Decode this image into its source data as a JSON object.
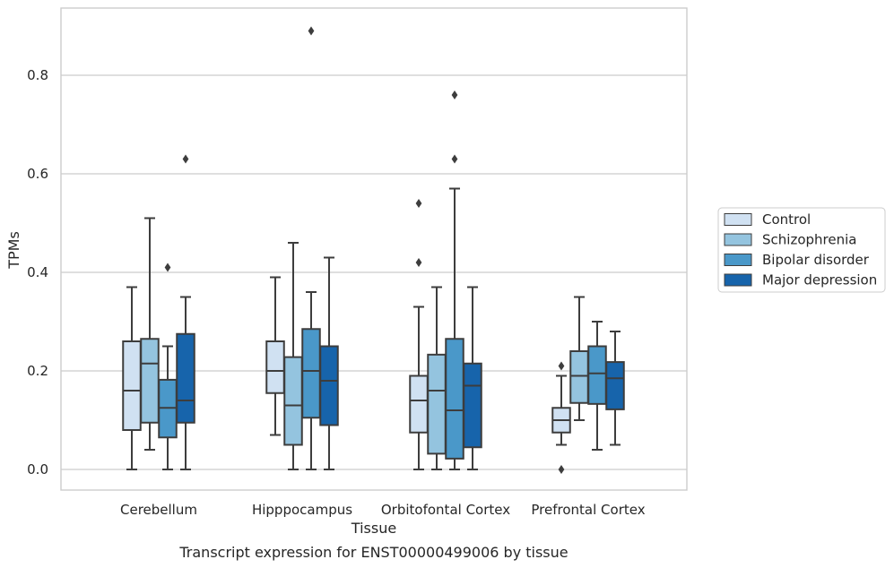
{
  "caption": "Transcript expression for ENST00000499006 by tissue",
  "chart_data": {
    "type": "box",
    "title": "",
    "xlabel": "Tissue",
    "ylabel": "TPMs",
    "ylim": [
      -0.04,
      0.94
    ],
    "yticks": [
      0.0,
      0.2,
      0.4,
      0.6,
      0.8
    ],
    "ytick_labels": [
      "0.0",
      "0.2",
      "0.4",
      "0.6",
      "0.8"
    ],
    "grid": "horizontal",
    "legend_position": "right",
    "categories": [
      "Cerebellum",
      "Hipppocampus",
      "Orbitofontal Cortex",
      "Prefrontal Cortex"
    ],
    "series": [
      {
        "name": "Control",
        "color": "#d0e1f2",
        "boxes": [
          {
            "whisker_low": 0.0,
            "q1": 0.08,
            "median": 0.16,
            "q3": 0.26,
            "whisker_high": 0.37,
            "outliers": []
          },
          {
            "whisker_low": 0.07,
            "q1": 0.155,
            "median": 0.2,
            "q3": 0.26,
            "whisker_high": 0.39,
            "outliers": []
          },
          {
            "whisker_low": 0.0,
            "q1": 0.075,
            "median": 0.14,
            "q3": 0.19,
            "whisker_high": 0.33,
            "outliers": [
              0.42,
              0.54
            ]
          },
          {
            "whisker_low": 0.05,
            "q1": 0.075,
            "median": 0.1,
            "q3": 0.125,
            "whisker_high": 0.19,
            "outliers": [
              0.0,
              0.21
            ]
          }
        ]
      },
      {
        "name": "Schizophrenia",
        "color": "#94c4df",
        "boxes": [
          {
            "whisker_low": 0.04,
            "q1": 0.095,
            "median": 0.215,
            "q3": 0.265,
            "whisker_high": 0.51,
            "outliers": []
          },
          {
            "whisker_low": 0.0,
            "q1": 0.05,
            "median": 0.13,
            "q3": 0.228,
            "whisker_high": 0.46,
            "outliers": []
          },
          {
            "whisker_low": 0.0,
            "q1": 0.032,
            "median": 0.16,
            "q3": 0.233,
            "whisker_high": 0.37,
            "outliers": []
          },
          {
            "whisker_low": 0.1,
            "q1": 0.135,
            "median": 0.19,
            "q3": 0.24,
            "whisker_high": 0.35,
            "outliers": []
          }
        ]
      },
      {
        "name": "Bipolar disorder",
        "color": "#4a98c9",
        "boxes": [
          {
            "whisker_low": 0.0,
            "q1": 0.065,
            "median": 0.125,
            "q3": 0.182,
            "whisker_high": 0.25,
            "outliers": [
              0.41
            ]
          },
          {
            "whisker_low": 0.0,
            "q1": 0.105,
            "median": 0.2,
            "q3": 0.285,
            "whisker_high": 0.36,
            "outliers": [
              0.89
            ]
          },
          {
            "whisker_low": 0.0,
            "q1": 0.022,
            "median": 0.12,
            "q3": 0.265,
            "whisker_high": 0.57,
            "outliers": [
              0.63,
              0.76
            ]
          },
          {
            "whisker_low": 0.04,
            "q1": 0.133,
            "median": 0.195,
            "q3": 0.25,
            "whisker_high": 0.3,
            "outliers": []
          }
        ]
      },
      {
        "name": "Major depression",
        "color": "#1764ab",
        "boxes": [
          {
            "whisker_low": 0.0,
            "q1": 0.095,
            "median": 0.14,
            "q3": 0.275,
            "whisker_high": 0.35,
            "outliers": [
              0.63
            ]
          },
          {
            "whisker_low": 0.0,
            "q1": 0.09,
            "median": 0.18,
            "q3": 0.25,
            "whisker_high": 0.43,
            "outliers": []
          },
          {
            "whisker_low": 0.0,
            "q1": 0.045,
            "median": 0.17,
            "q3": 0.215,
            "whisker_high": 0.37,
            "outliers": []
          },
          {
            "whisker_low": 0.05,
            "q1": 0.122,
            "median": 0.185,
            "q3": 0.218,
            "whisker_high": 0.28,
            "outliers": []
          }
        ]
      }
    ],
    "colors": {
      "grid": "#cccccc",
      "frame": "#cccccc",
      "box_edge": "#3d3d3d",
      "text": "#262626"
    }
  }
}
